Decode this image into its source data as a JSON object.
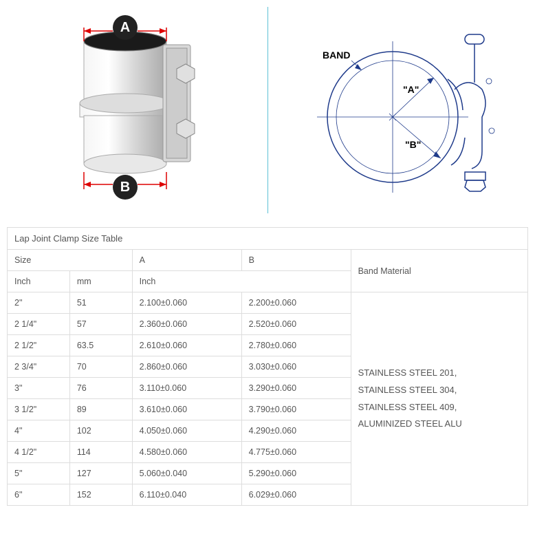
{
  "images": {
    "left": {
      "label_top": "A",
      "label_bottom": "B",
      "label_circle_fill": "#222222",
      "label_text_color": "#ffffff",
      "arrow_color": "#d10000"
    },
    "right": {
      "band_label": "BAND",
      "dim_a": "\"A\"",
      "dim_b": "\"B\"",
      "line_color": "#1e3a8a"
    },
    "divider_color": "#5cc0d6"
  },
  "table": {
    "title": "Lap Joint Clamp Size Table",
    "headers": {
      "size": "Size",
      "a": "A",
      "b": "B",
      "inch": "Inch",
      "mm": "mm",
      "inch2": "Inch",
      "band_material": "Band Material"
    },
    "col_widths": {
      "inch": "12%",
      "mm": "12%",
      "a": "21%",
      "b": "21%",
      "mat": "34%"
    },
    "rows": [
      {
        "inch": "2\"",
        "mm": "51",
        "a": "2.100±0.060",
        "b": "2.200±0.060"
      },
      {
        "inch": "2 1/4\"",
        "mm": "57",
        "a": "2.360±0.060",
        "b": "2.520±0.060"
      },
      {
        "inch": "2 1/2\"",
        "mm": "63.5",
        "a": "2.610±0.060",
        "b": "2.780±0.060"
      },
      {
        "inch": "2 3/4\"",
        "mm": "70",
        "a": "2.860±0.060",
        "b": "3.030±0.060"
      },
      {
        "inch": "3\"",
        "mm": "76",
        "a": "3.110±0.060",
        "b": "3.290±0.060"
      },
      {
        "inch": "3 1/2\"",
        "mm": "89",
        "a": "3.610±0.060",
        "b": "3.790±0.060"
      },
      {
        "inch": "4\"",
        "mm": "102",
        "a": "4.050±0.060",
        "b": "4.290±0.060"
      },
      {
        "inch": "4 1/2\"",
        "mm": "114",
        "a": "4.580±0.060",
        "b": "4.775±0.060"
      },
      {
        "inch": "5\"",
        "mm": "127",
        "a": "5.060±0.040",
        "b": "5.290±0.060"
      },
      {
        "inch": "6\"",
        "mm": "152",
        "a": "6.110±0.040",
        "b": "6.029±0.060"
      }
    ],
    "materials": [
      "STAINLESS STEEL 201,",
      "STAINLESS STEEL 304,",
      "STAINLESS STEEL 409,",
      "ALUMINIZED STEEL ALU"
    ],
    "border_color": "#dddddd",
    "text_color": "#555555"
  }
}
